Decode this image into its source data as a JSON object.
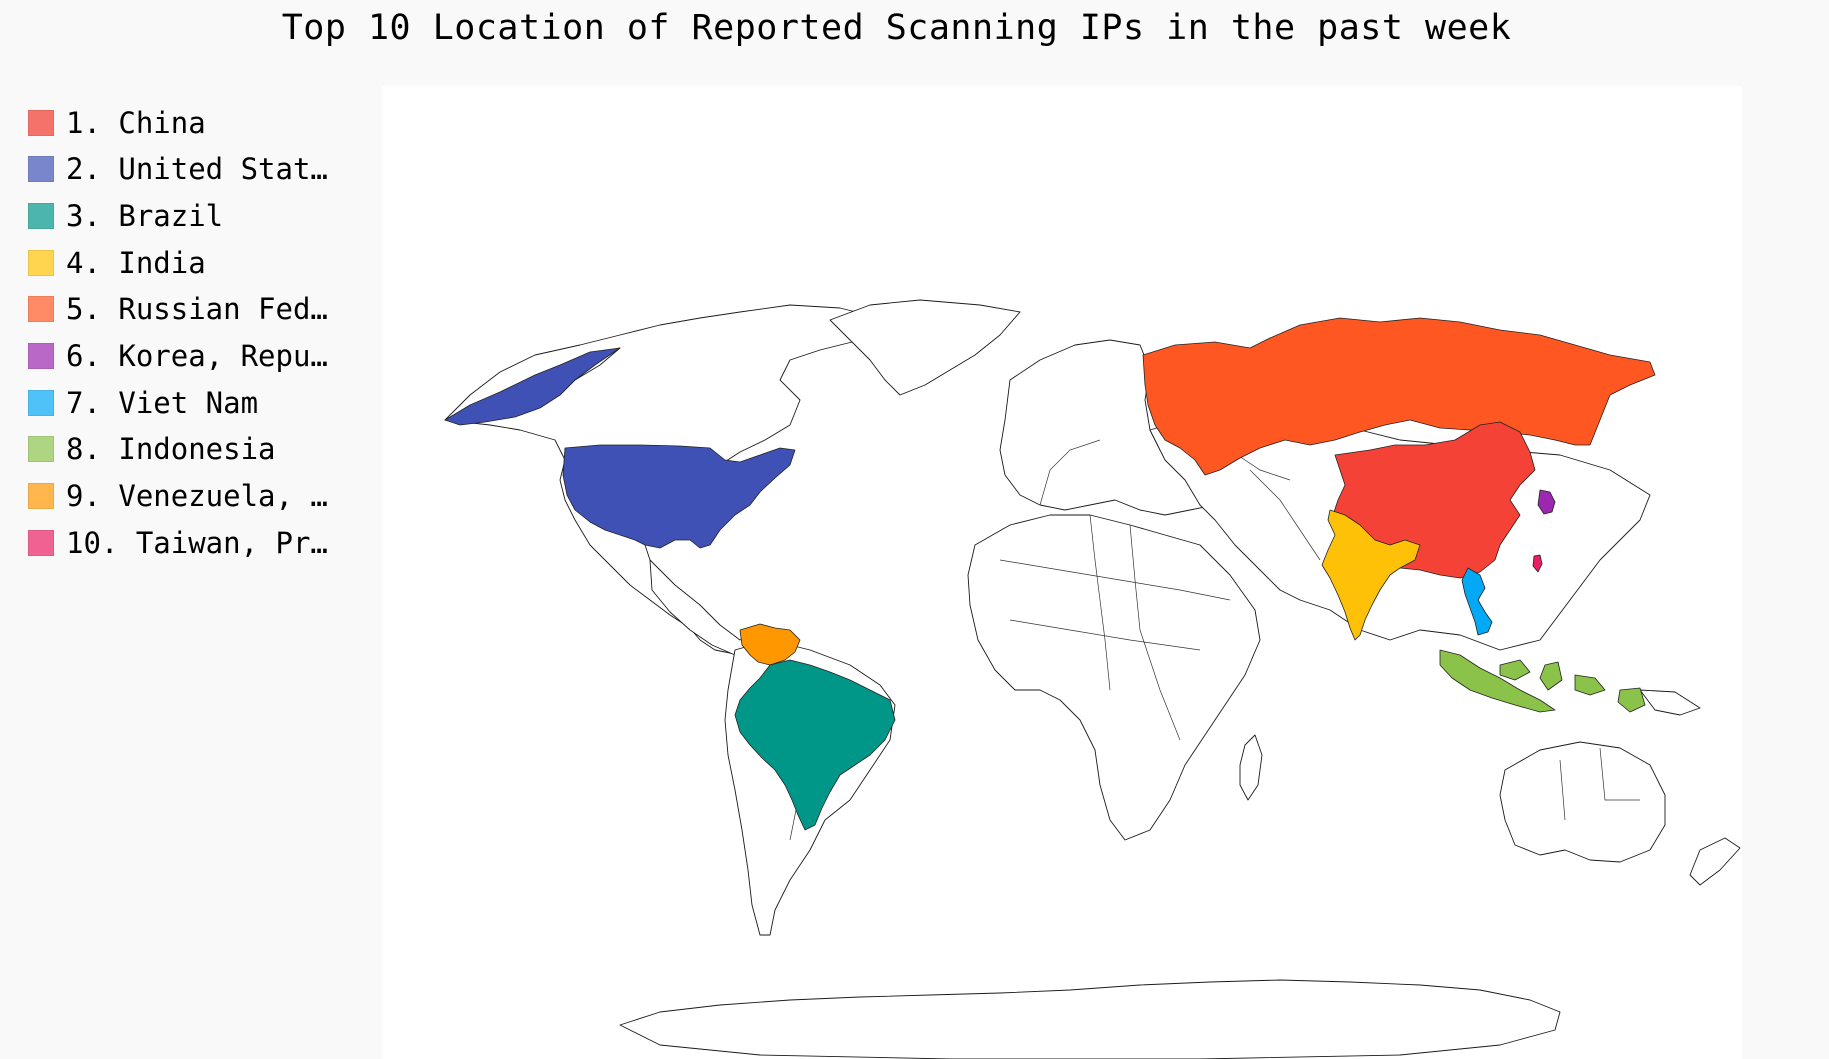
{
  "title": "Top 10 Location of Reported Scanning IPs in the past week",
  "legend": [
    {
      "label": "1. China",
      "color": "#f4726a"
    },
    {
      "label": "2. United Stat…",
      "color": "#7986cb"
    },
    {
      "label": "3. Brazil",
      "color": "#4db6ac"
    },
    {
      "label": "4. India",
      "color": "#ffd54f"
    },
    {
      "label": "5. Russian Fed…",
      "color": "#ff8a65"
    },
    {
      "label": "6. Korea, Repu…",
      "color": "#ba68c8"
    },
    {
      "label": "7. Viet Nam",
      "color": "#4fc3f7"
    },
    {
      "label": "8. Indonesia",
      "color": "#aed581"
    },
    {
      "label": "9. Venezuela, …",
      "color": "#ffb74d"
    },
    {
      "label": "10. Taiwan, Pr…",
      "color": "#f06292"
    }
  ],
  "map_fills": {
    "china": "#f44336",
    "united-states": "#3f51b5",
    "brazil": "#009688",
    "india": "#ffc107",
    "russian-federation": "#ff5722",
    "korea": "#9c27b0",
    "viet-nam": "#03a9f4",
    "indonesia": "#8bc34a",
    "venezuela": "#ff9800",
    "taiwan": "#e91e63"
  }
}
